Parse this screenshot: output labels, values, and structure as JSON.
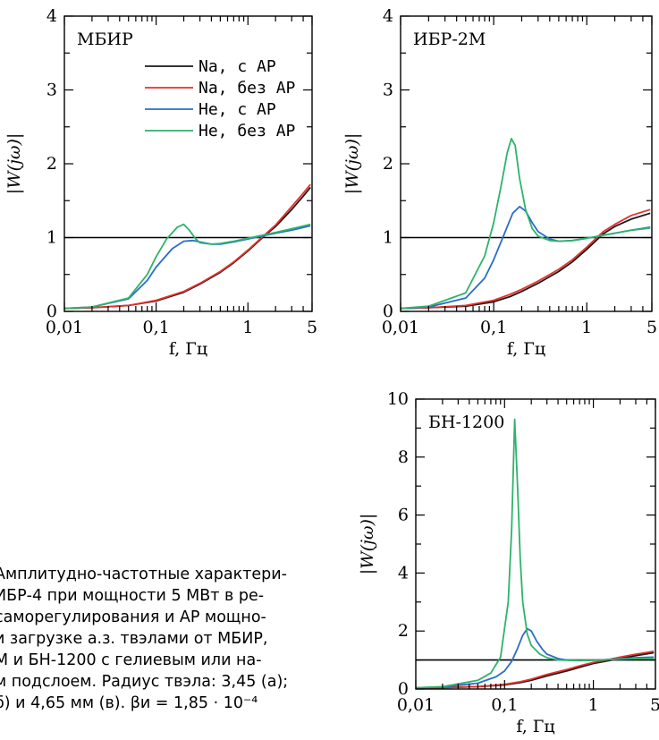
{
  "caption": {
    "lines": [
      "Амплитудно-частотные характери-",
      "ИБР-4 при мощности 5 МВт в ре-",
      "саморегулирования и АР мощно-",
      "и загрузке а.з. твэлами от МБИР,",
      "М и БН-1200 с гелиевым или на-",
      "м подслоем. Радиус твэла: 3,45 (а);",
      "б) и 4,65 мм (в). βи = 1,85 · 10⁻⁴"
    ]
  },
  "chart_data": [
    {
      "type": "line",
      "panel_label": "МБИР",
      "xlabel": "f, Гц",
      "ylabel": "|W(jω)|",
      "x_scale": "log",
      "xlim": [
        0.01,
        5
      ],
      "ylim": [
        0,
        4
      ],
      "xticks": [
        0.01,
        0.1,
        1,
        5
      ],
      "xtick_labels": [
        "0,01",
        "0,1",
        "1",
        "5"
      ],
      "yticks": [
        0,
        1,
        2,
        3,
        4
      ],
      "ytick_labels": [
        "0",
        "1",
        "2",
        "3",
        "4"
      ],
      "reference_line": 1,
      "legend_position": "top-right",
      "series": [
        {
          "name": "Na, с АР",
          "color": "#1a1a1a",
          "x": [
            0.01,
            0.02,
            0.05,
            0.1,
            0.2,
            0.3,
            0.5,
            0.7,
            1,
            1.5,
            2,
            3,
            4,
            4.8
          ],
          "y": [
            0.04,
            0.05,
            0.08,
            0.14,
            0.26,
            0.37,
            0.53,
            0.66,
            0.82,
            1.02,
            1.15,
            1.38,
            1.56,
            1.68
          ]
        },
        {
          "name": "Na, без АР",
          "color": "#e8302a",
          "x": [
            0.01,
            0.02,
            0.05,
            0.1,
            0.2,
            0.3,
            0.5,
            0.7,
            1,
            1.5,
            2,
            3,
            4,
            4.8
          ],
          "y": [
            0.04,
            0.05,
            0.08,
            0.15,
            0.27,
            0.38,
            0.54,
            0.67,
            0.83,
            1.03,
            1.17,
            1.42,
            1.6,
            1.72
          ]
        },
        {
          "name": "He, с АР",
          "color": "#2a6dc8",
          "x": [
            0.01,
            0.02,
            0.05,
            0.08,
            0.1,
            0.15,
            0.2,
            0.25,
            0.3,
            0.4,
            0.5,
            0.7,
            1,
            2,
            3,
            4.8
          ],
          "y": [
            0.04,
            0.06,
            0.17,
            0.42,
            0.6,
            0.85,
            0.95,
            0.96,
            0.94,
            0.91,
            0.91,
            0.94,
            0.98,
            1.06,
            1.1,
            1.16
          ]
        },
        {
          "name": "He, без АР",
          "color": "#2db36b",
          "x": [
            0.01,
            0.02,
            0.05,
            0.08,
            0.1,
            0.13,
            0.17,
            0.2,
            0.23,
            0.27,
            0.3,
            0.4,
            0.5,
            0.7,
            1,
            2,
            3,
            4.8
          ],
          "y": [
            0.04,
            0.06,
            0.18,
            0.5,
            0.74,
            0.98,
            1.14,
            1.18,
            1.1,
            0.98,
            0.93,
            0.91,
            0.92,
            0.95,
            0.99,
            1.07,
            1.12,
            1.18
          ]
        }
      ]
    },
    {
      "type": "line",
      "panel_label": "ИБР-2М",
      "xlabel": "f, Гц",
      "ylabel": "|W(jω)|",
      "x_scale": "log",
      "xlim": [
        0.01,
        5
      ],
      "ylim": [
        0,
        4
      ],
      "xticks": [
        0.01,
        0.1,
        1,
        5
      ],
      "xtick_labels": [
        "0,01",
        "0,1",
        "1",
        "5"
      ],
      "yticks": [
        0,
        1,
        2,
        3,
        4
      ],
      "ytick_labels": [
        "0",
        "1",
        "2",
        "3",
        "4"
      ],
      "reference_line": 1,
      "series": [
        {
          "name": "Na, с АР",
          "color": "#1a1a1a",
          "x": [
            0.01,
            0.02,
            0.05,
            0.1,
            0.15,
            0.2,
            0.3,
            0.5,
            0.7,
            1,
            1.5,
            2,
            3,
            4.8
          ],
          "y": [
            0.04,
            0.05,
            0.07,
            0.13,
            0.2,
            0.27,
            0.38,
            0.54,
            0.67,
            0.84,
            1.05,
            1.15,
            1.25,
            1.33
          ]
        },
        {
          "name": "Na, без АР",
          "color": "#e8302a",
          "x": [
            0.01,
            0.02,
            0.05,
            0.1,
            0.15,
            0.2,
            0.3,
            0.5,
            0.7,
            1,
            1.5,
            2,
            3,
            4.8
          ],
          "y": [
            0.04,
            0.05,
            0.08,
            0.15,
            0.23,
            0.3,
            0.41,
            0.57,
            0.7,
            0.87,
            1.08,
            1.18,
            1.3,
            1.38
          ]
        },
        {
          "name": "He, с АР",
          "color": "#2a6dc8",
          "x": [
            0.01,
            0.02,
            0.05,
            0.08,
            0.1,
            0.13,
            0.16,
            0.19,
            0.22,
            0.26,
            0.3,
            0.4,
            0.5,
            0.7,
            1,
            2,
            3,
            4.8
          ],
          "y": [
            0.04,
            0.06,
            0.18,
            0.45,
            0.7,
            1.05,
            1.33,
            1.42,
            1.36,
            1.2,
            1.08,
            0.98,
            0.95,
            0.96,
            0.99,
            1.06,
            1.1,
            1.14
          ]
        },
        {
          "name": "He, без АР",
          "color": "#2db36b",
          "x": [
            0.01,
            0.02,
            0.05,
            0.08,
            0.1,
            0.12,
            0.14,
            0.155,
            0.17,
            0.19,
            0.22,
            0.26,
            0.3,
            0.4,
            0.5,
            0.7,
            1,
            2,
            3,
            4.8
          ],
          "y": [
            0.04,
            0.07,
            0.25,
            0.75,
            1.2,
            1.7,
            2.15,
            2.34,
            2.25,
            1.8,
            1.38,
            1.12,
            1.02,
            0.96,
            0.95,
            0.96,
            0.99,
            1.06,
            1.1,
            1.13
          ]
        }
      ]
    },
    {
      "type": "line",
      "panel_label": "БН-1200",
      "xlabel": "f, Гц",
      "ylabel": "|W(jω)|",
      "x_scale": "log",
      "xlim": [
        0.01,
        5
      ],
      "ylim": [
        0,
        10
      ],
      "xticks": [
        0.01,
        0.1,
        1,
        5
      ],
      "xtick_labels": [
        "0,01",
        "0,1",
        "1",
        "5"
      ],
      "yticks": [
        0,
        2,
        4,
        6,
        8,
        10
      ],
      "ytick_labels": [
        "0",
        "2",
        "4",
        "6",
        "8",
        "10"
      ],
      "reference_line": 1,
      "series": [
        {
          "name": "Na, с АР",
          "color": "#1a1a1a",
          "x": [
            0.01,
            0.02,
            0.05,
            0.1,
            0.15,
            0.2,
            0.3,
            0.5,
            0.7,
            1,
            1.5,
            2,
            3,
            4.8
          ],
          "y": [
            0.04,
            0.05,
            0.08,
            0.14,
            0.22,
            0.3,
            0.45,
            0.62,
            0.75,
            0.88,
            0.98,
            1.05,
            1.15,
            1.25
          ]
        },
        {
          "name": "Na, без АР",
          "color": "#e8302a",
          "x": [
            0.01,
            0.02,
            0.05,
            0.1,
            0.15,
            0.2,
            0.3,
            0.5,
            0.7,
            1,
            1.5,
            2,
            3,
            4.8
          ],
          "y": [
            0.04,
            0.05,
            0.08,
            0.16,
            0.25,
            0.34,
            0.5,
            0.67,
            0.8,
            0.92,
            1.02,
            1.1,
            1.2,
            1.3
          ]
        },
        {
          "name": "He, с АР",
          "color": "#2a6dc8",
          "x": [
            0.01,
            0.02,
            0.05,
            0.08,
            0.1,
            0.12,
            0.14,
            0.16,
            0.18,
            0.2,
            0.23,
            0.27,
            0.3,
            0.4,
            0.5,
            0.7,
            1,
            2,
            3,
            4.8
          ],
          "y": [
            0.04,
            0.07,
            0.2,
            0.42,
            0.62,
            0.95,
            1.4,
            1.85,
            2.08,
            2.0,
            1.65,
            1.35,
            1.2,
            1.05,
            1.0,
            0.98,
            0.99,
            1.04,
            1.08,
            1.1
          ]
        },
        {
          "name": "He, без АР",
          "color": "#2db36b",
          "x": [
            0.01,
            0.02,
            0.05,
            0.07,
            0.09,
            0.11,
            0.12,
            0.13,
            0.14,
            0.15,
            0.16,
            0.18,
            0.2,
            0.25,
            0.3,
            0.4,
            0.5,
            0.7,
            1,
            2,
            3,
            4.8
          ],
          "y": [
            0.04,
            0.08,
            0.3,
            0.55,
            1.1,
            3.0,
            5.5,
            9.3,
            7.0,
            4.5,
            3.0,
            1.9,
            1.5,
            1.2,
            1.08,
            1.0,
            0.99,
            0.98,
            0.99,
            1.03,
            1.05,
            1.06
          ]
        }
      ]
    }
  ]
}
